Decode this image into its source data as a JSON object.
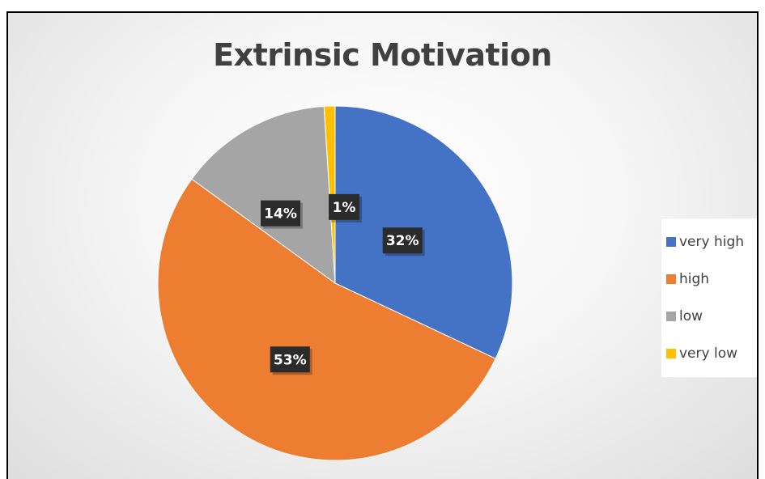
{
  "chart_data": {
    "type": "pie",
    "title": "Extrinsic Motivation",
    "categories": [
      "very high",
      "high",
      "low",
      "very low"
    ],
    "values": [
      32,
      53,
      14,
      1
    ],
    "data_labels": [
      "32%",
      "53%",
      "14%",
      "1%"
    ],
    "colors": [
      "#4472C4",
      "#ED7D31",
      "#A5A5A5",
      "#FFC000"
    ],
    "legend_position": "right"
  }
}
